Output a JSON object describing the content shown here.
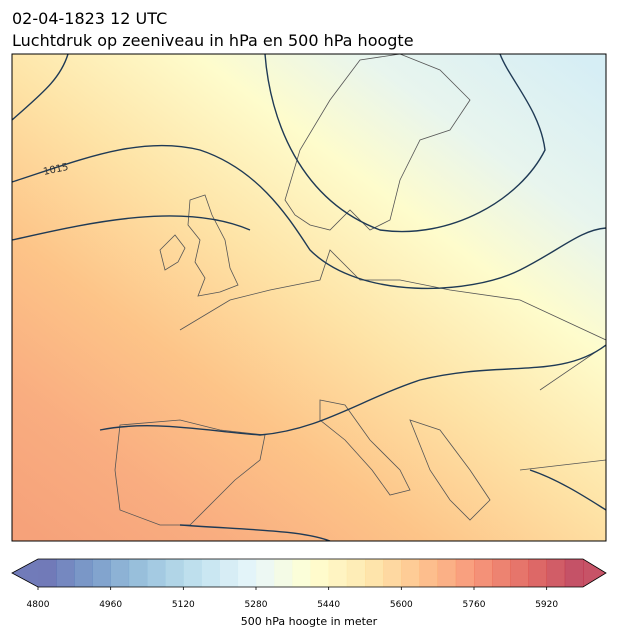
{
  "title_line1": "02-04-1823 12 UTC",
  "title_line2": "Luchtdruk op zeeniveau in hPa en 500 hPa hoogte",
  "contour_label": "1015",
  "colorbar": {
    "lim": [
      4800,
      6000
    ],
    "step": 40,
    "ticks": [
      4800,
      4960,
      5120,
      5280,
      5440,
      5600,
      5760,
      5920
    ],
    "label": "500 hPa hoogte in meter"
  }
}
